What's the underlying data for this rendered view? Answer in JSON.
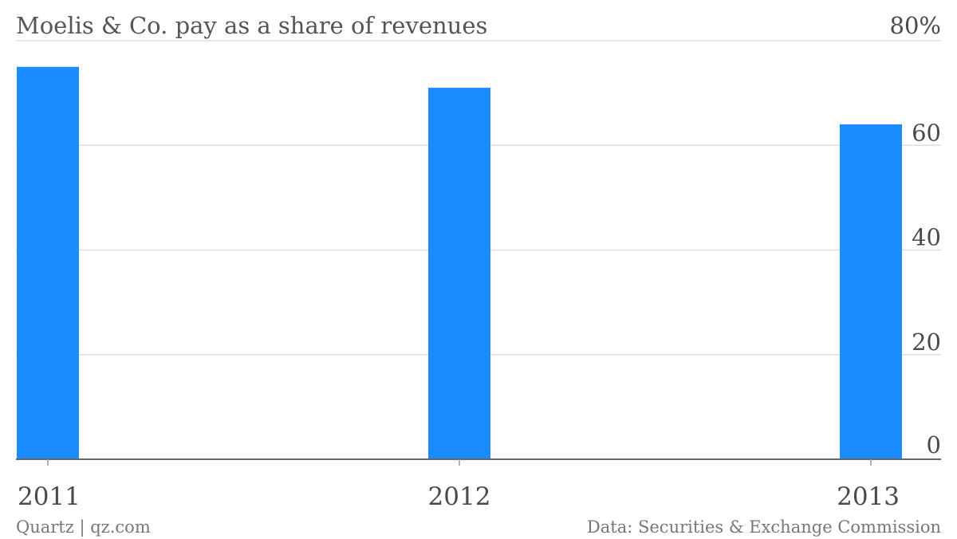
{
  "chart_data": {
    "type": "bar",
    "title": "Moelis & Co. pay as a share of revenues",
    "categories": [
      "2011",
      "2012",
      "2013"
    ],
    "values": [
      75,
      71,
      64
    ],
    "ylim": [
      0,
      80
    ],
    "yticks": [
      0,
      20,
      40,
      60,
      80
    ],
    "ytick_labels": [
      "0",
      "20",
      "40",
      "60",
      "80%"
    ],
    "y_axis_side": "right",
    "grid": true,
    "bar_color": "#1a8cff",
    "xlabel": "",
    "ylabel": ""
  },
  "footer": {
    "left": "Quartz | qz.com",
    "right": "Data: Securities & Exchange Commission"
  }
}
